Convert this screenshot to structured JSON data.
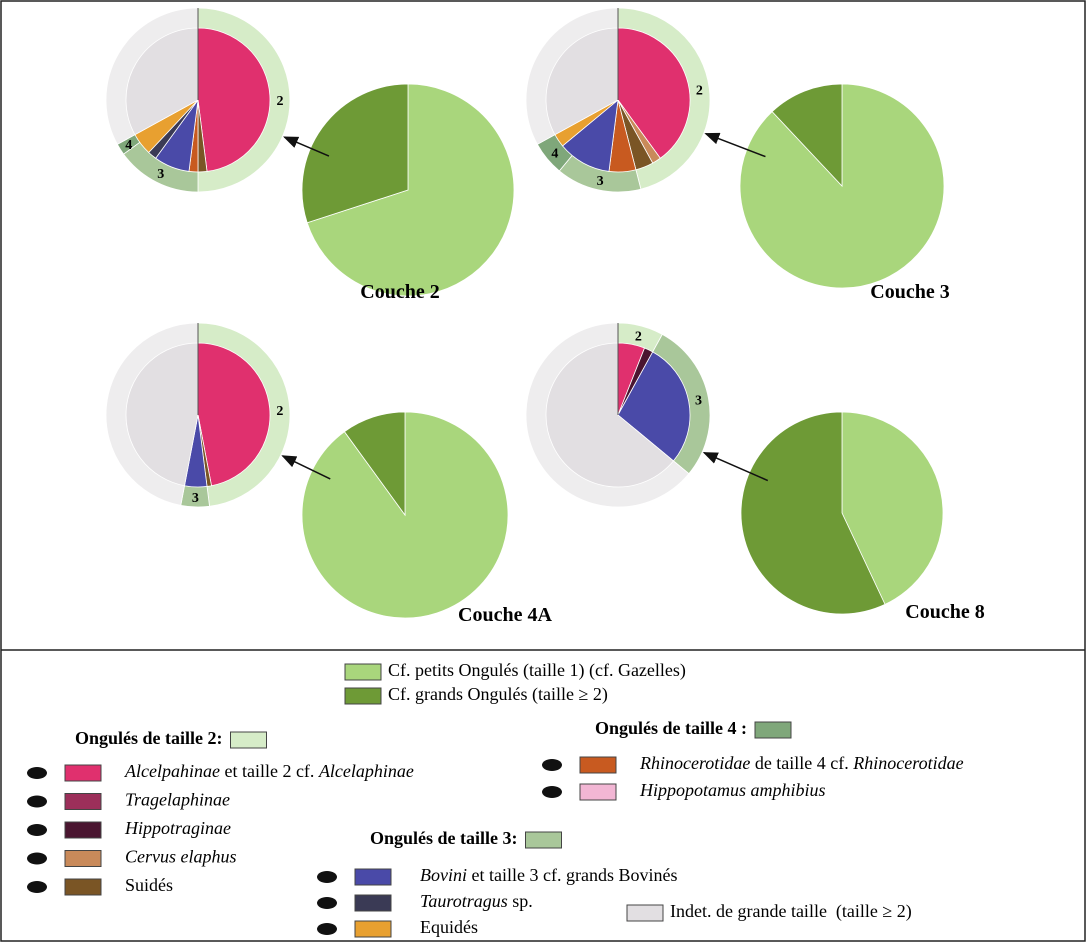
{
  "chart_data": {
    "type": "pie",
    "categories": [
      "Cf. petits Ongulés (taille 1) (cf. Gazelles)",
      "Cf. grands Ongulés (taille ≥ 2)"
    ],
    "colors": [
      "#a9d67c",
      "#6e9a36"
    ],
    "detail_categories": [
      [
        {
          "text": "Alcelpahinae",
          "italic": true
        },
        {
          "text": " et taille 2 cf. ",
          "italic": false
        },
        {
          "text": "Alcelaphinae",
          "italic": true
        }
      ],
      [
        {
          "text": "Tragelaphinae",
          "italic": true
        }
      ],
      [
        {
          "text": "Hippotraginae",
          "italic": true
        }
      ],
      [
        {
          "text": "Cervus elaphus",
          "italic": true
        }
      ],
      [
        {
          "text": "Suidés",
          "italic": false
        }
      ],
      [
        {
          "text": "Rhinocerotidae",
          "italic": true
        },
        {
          "text": " de taille 4 cf. ",
          "italic": false
        },
        {
          "text": "Rhinocerotidae",
          "italic": true
        }
      ],
      [
        {
          "text": "Hippopotamus amphibius",
          "italic": true
        }
      ],
      [
        {
          "text": "Bovini",
          "italic": true
        },
        {
          "text": " et taille 3 cf. grands Bovinés",
          "italic": false
        }
      ],
      [
        {
          "text": "Taurotragus",
          "italic": true
        },
        {
          "text": " sp.",
          "italic": false
        }
      ],
      [
        {
          "text": "Equidés",
          "italic": false
        }
      ],
      [
        {
          "text": "Indet. de grande taille  (taille ≥ 2)",
          "italic": false
        }
      ]
    ],
    "detail_colors": [
      "#e0306e",
      "#9c2f5a",
      "#4a1530",
      "#c98a5a",
      "#7a5525",
      "#c85a20",
      "#f2b6d4",
      "#4a4aa8",
      "#3a3a55",
      "#e8a030",
      "#e2dfe2"
    ],
    "groups": [
      {
        "title": "Ongulés de taille 2:",
        "color": "#d6ecc8",
        "members": [
          0,
          1,
          2,
          3,
          4
        ]
      },
      {
        "title": "Ongulés de taille 4 :",
        "color": "#7fa77a",
        "members": [
          5,
          6
        ]
      },
      {
        "title": "Ongulés de taille 3:",
        "color": "#a9c79a",
        "members": [
          7,
          8,
          9
        ]
      }
    ],
    "ring_classes": [
      "2",
      "3",
      "4"
    ],
    "ring_colors": [
      "#d6ecc8",
      "#a9c79a",
      "#7fa77a",
      "#eeedee"
    ],
    "panels": [
      {
        "title": "Couche 2",
        "values": [
          70,
          30
        ],
        "detail_values": [
          48,
          0,
          0,
          0,
          2,
          2,
          0,
          8,
          2,
          5,
          33
        ],
        "ring_values": [
          50,
          15,
          2,
          33
        ]
      },
      {
        "title": "Couche 3",
        "values": [
          88,
          12
        ],
        "detail_values": [
          40,
          0,
          0,
          2,
          4,
          6,
          0,
          12,
          0,
          3,
          33
        ],
        "ring_values": [
          46,
          15,
          6,
          33
        ]
      },
      {
        "title": "Couche 4A",
        "values": [
          90,
          10
        ],
        "detail_values": [
          47,
          0,
          0,
          0,
          1,
          0,
          0,
          5,
          0,
          0,
          47
        ],
        "ring_values": [
          48,
          5,
          0,
          47
        ]
      },
      {
        "title": "Couche 8",
        "values": [
          43,
          57
        ],
        "detail_values": [
          6,
          0,
          2,
          0,
          0,
          0,
          0,
          28,
          0,
          0,
          64
        ],
        "ring_values": [
          8,
          28,
          0,
          64
        ]
      }
    ]
  }
}
